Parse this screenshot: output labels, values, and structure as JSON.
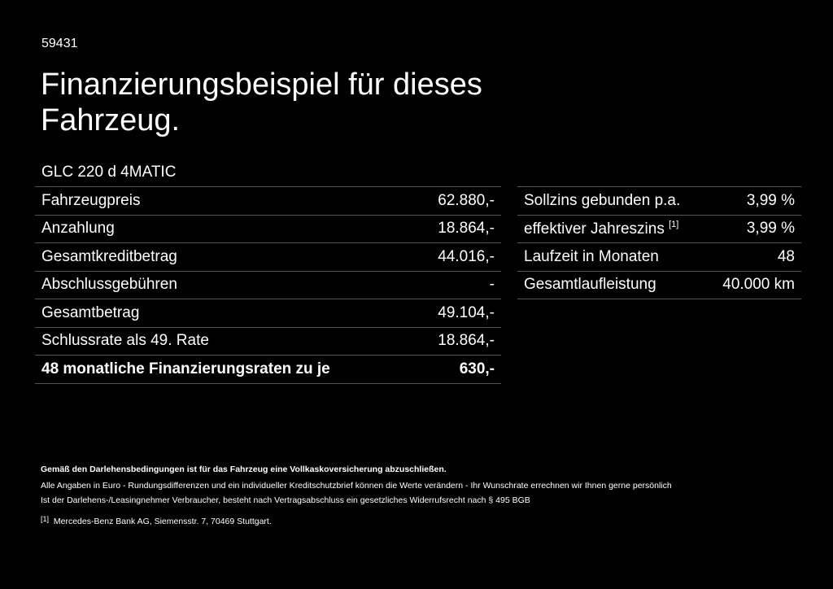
{
  "ref_number": "59431",
  "title": "Finanzierungsbeispiel für dieses Fahrzeug.",
  "model": "GLC 220 d 4MATIC",
  "left_table": [
    {
      "label": "Fahrzeugpreis",
      "value": "62.880,-"
    },
    {
      "label": "Anzahlung",
      "value": "18.864,-"
    },
    {
      "label": "Gesamtkreditbetrag",
      "value": "44.016,-"
    },
    {
      "label": "Abschlussgebühren",
      "value": "-"
    },
    {
      "label": "Gesamtbetrag",
      "value": "49.104,-"
    },
    {
      "label": "Schlussrate als 49. Rate",
      "value": "18.864,-"
    },
    {
      "label": "48 monatliche Finanzierungsraten zu je",
      "value": "630,-"
    }
  ],
  "right_table": [
    {
      "label": "Sollzins gebunden p.a.",
      "value": "3,99 %"
    },
    {
      "label": "effektiver Jahreszins",
      "sup": "[1]",
      "value": "3,99 %"
    },
    {
      "label": "Laufzeit in Monaten",
      "value": "48"
    },
    {
      "label": "Gesamtlaufleistung",
      "value": "40.000 km"
    }
  ],
  "footnotes": {
    "insurance": "Gemäß den Darlehensbedingungen ist für das Fahrzeug eine Vollkaskoversicherung abzuschließen.",
    "disclaimer": "Alle Angaben in Euro - Rundungsdifferenzen und ein individueller Kreditschutzbrief können die Werte verändern - Ihr Wunschrate errechnen wir Ihnen gerne persönlich",
    "withdrawal": "Ist der Darlehens-/Leasingnehmer Verbraucher, besteht nach Vertragsabschluss ein gesetzliches Widerrufsrecht nach § 495 BGB",
    "ref_marker": "[1]",
    "ref_text": "Mercedes-Benz Bank AG, Siemensstr. 7, 70469 Stuttgart."
  }
}
